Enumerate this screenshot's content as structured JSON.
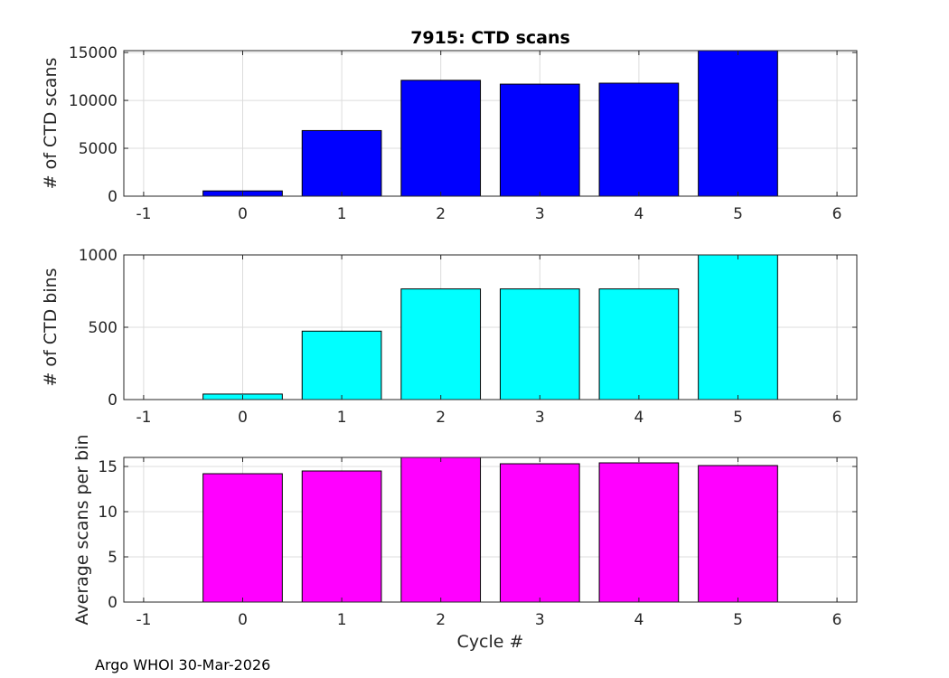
{
  "footer": "Argo WHOI 30-Mar-2026",
  "chart_data": [
    {
      "type": "bar",
      "title": "7915: CTD scans",
      "xlabel": "",
      "ylabel": "# of CTD scans",
      "xlim": [
        -1.2,
        6.2
      ],
      "ylim": [
        0,
        15200
      ],
      "xticks": [
        -1,
        0,
        1,
        2,
        3,
        4,
        5,
        6
      ],
      "yticks": [
        0,
        5000,
        10000,
        15000
      ],
      "grid": true,
      "color": "#0000ff",
      "categories": [
        0,
        1,
        2,
        3,
        4,
        5
      ],
      "values": [
        550,
        6850,
        12100,
        11700,
        11800,
        15200
      ]
    },
    {
      "type": "bar",
      "title": "",
      "xlabel": "",
      "ylabel": "# of CTD bins",
      "xlim": [
        -1.2,
        6.2
      ],
      "ylim": [
        0,
        1000
      ],
      "xticks": [
        -1,
        0,
        1,
        2,
        3,
        4,
        5,
        6
      ],
      "yticks": [
        0,
        500,
        1000
      ],
      "grid": true,
      "color": "#00ffff",
      "categories": [
        0,
        1,
        2,
        3,
        4,
        5
      ],
      "values": [
        38,
        473,
        765,
        765,
        765,
        1000
      ]
    },
    {
      "type": "bar",
      "title": "",
      "xlabel": "Cycle #",
      "ylabel": "Average scans per bin",
      "xlim": [
        -1.2,
        6.2
      ],
      "ylim": [
        0,
        16
      ],
      "xticks": [
        -1,
        0,
        1,
        2,
        3,
        4,
        5,
        6
      ],
      "yticks": [
        0,
        5,
        10,
        15
      ],
      "grid": true,
      "color": "#ff00ff",
      "categories": [
        0,
        1,
        2,
        3,
        4,
        5
      ],
      "values": [
        14.2,
        14.5,
        16.0,
        15.3,
        15.4,
        15.1
      ]
    }
  ]
}
